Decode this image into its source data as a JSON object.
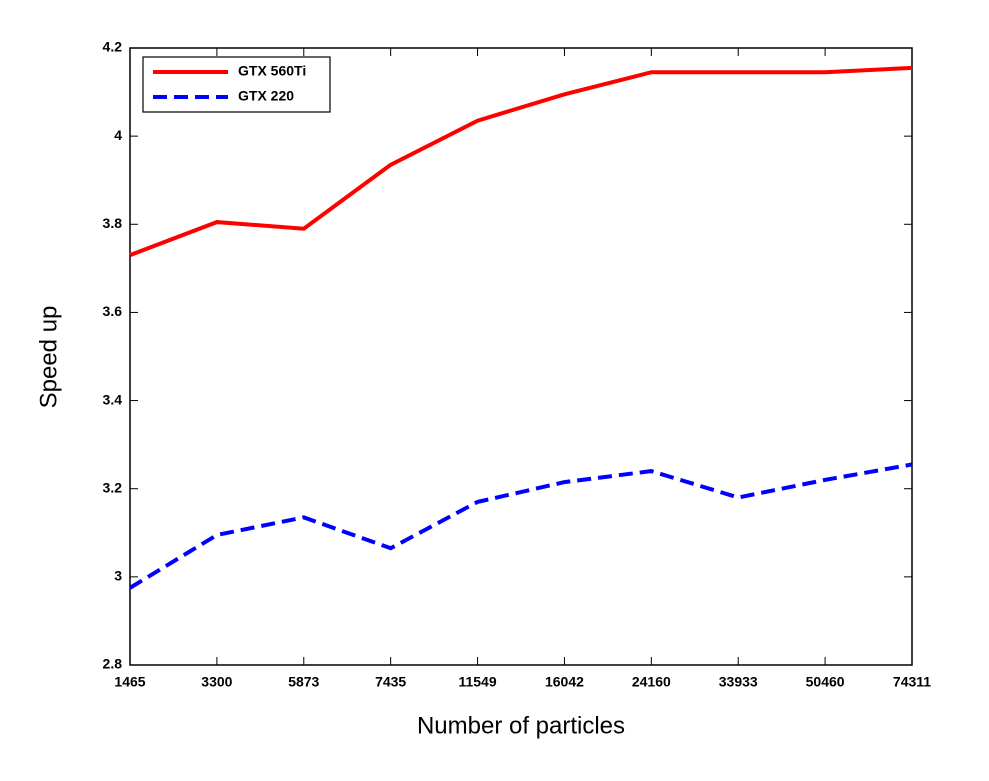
{
  "chart_data": {
    "type": "line",
    "x_label": "Number of particles",
    "y_label": "Speed up",
    "categories": [
      "1465",
      "3300",
      "5873",
      "7435",
      "11549",
      "16042",
      "24160",
      "33933",
      "50460",
      "74311"
    ],
    "series": [
      {
        "name": "GTX 560Ti",
        "color": "#ff0000",
        "dash": false,
        "values": [
          3.73,
          3.805,
          3.79,
          3.935,
          4.035,
          4.095,
          4.145,
          4.145,
          4.145,
          4.155
        ]
      },
      {
        "name": "GTX 220",
        "color": "#0000ff",
        "dash": true,
        "values": [
          2.975,
          3.095,
          3.135,
          3.065,
          3.17,
          3.215,
          3.24,
          3.18,
          3.22,
          3.255
        ]
      }
    ],
    "ylim": [
      2.8,
      4.2
    ],
    "yticks": [
      2.8,
      3,
      3.2,
      3.4,
      3.6,
      3.8,
      4,
      4.2
    ],
    "legend": "upper left"
  }
}
